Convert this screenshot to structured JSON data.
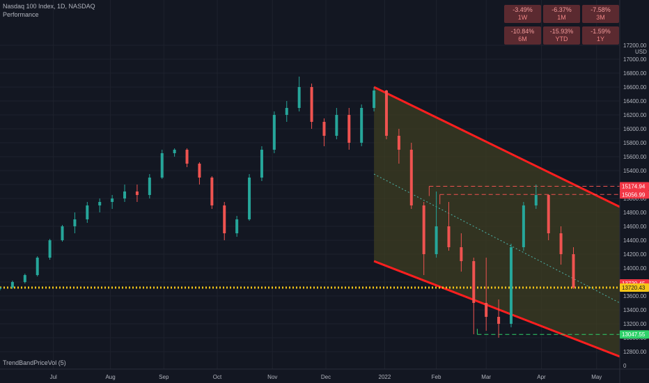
{
  "header": {
    "title": "Nasdaq 100 Index, 1D, NASDAQ",
    "subtitle": "Performance"
  },
  "performance": [
    {
      "value": "-3.49%",
      "period": "1W"
    },
    {
      "value": "-6.37%",
      "period": "1M"
    },
    {
      "value": "-7.58%",
      "period": "3M"
    },
    {
      "value": "-10.84%",
      "period": "6M"
    },
    {
      "value": "-15.93%",
      "period": "YTD"
    },
    {
      "value": "-1.59%",
      "period": "1Y"
    }
  ],
  "indicator_label": "TrendBandPriceVol (5)",
  "colors": {
    "background": "#131722",
    "up": "#26a69a",
    "down": "#ef5350",
    "channel_line": "#ff1f1f",
    "channel_fill": "#3d3d22",
    "dotted_level": "#f5c518",
    "mid_line": "#4db6ac",
    "support": "#2fd26a"
  },
  "chart_data": {
    "type": "candlestick",
    "y_unit": "USD",
    "ylim": [
      12550,
      17850
    ],
    "y_ticks": [
      12800,
      13000,
      13200,
      13400,
      13600,
      13800,
      14000,
      14200,
      14400,
      14600,
      14800,
      15000,
      15200,
      15400,
      15600,
      15800,
      16000,
      16200,
      16400,
      16600,
      16800,
      17000,
      17200
    ],
    "y_tick_labels": [
      "12800.00",
      "13000.00",
      "13200.00",
      "13400.00",
      "13600.00",
      "13800.00",
      "14000.00",
      "14200.00",
      "14400.00",
      "14600.00",
      "14800.00",
      "15000.00",
      "15200.00",
      "15400.00",
      "15600.00",
      "15800.00",
      "16000.00",
      "16200.00",
      "16400.00",
      "16600.00",
      "16800.00",
      "17000.00",
      "17200.00"
    ],
    "bottom_tick": "0",
    "x_range": [
      "2021-06-01",
      "2022-05-15"
    ],
    "x_ticks": [
      {
        "label": "Jul",
        "date": "2021-07-01"
      },
      {
        "label": "Aug",
        "date": "2021-08-02"
      },
      {
        "label": "Sep",
        "date": "2021-09-01"
      },
      {
        "label": "Oct",
        "date": "2021-10-01"
      },
      {
        "label": "Nov",
        "date": "2021-11-01"
      },
      {
        "label": "Dec",
        "date": "2021-12-01"
      },
      {
        "label": "2022",
        "date": "2022-01-03"
      },
      {
        "label": "Feb",
        "date": "2022-02-01"
      },
      {
        "label": "Mar",
        "date": "2022-03-01"
      },
      {
        "label": "Apr",
        "date": "2022-04-01"
      },
      {
        "label": "May",
        "date": "2022-05-02"
      }
    ],
    "price_markers": [
      {
        "label": "15174.94",
        "value": 15174.94,
        "color": "#f23645"
      },
      {
        "label": "15056.99",
        "value": 15056.99,
        "color": "#f23645"
      },
      {
        "label": "13720.45",
        "value": 13780,
        "color": "#f23645"
      },
      {
        "label": "13720.43",
        "value": 13720.43,
        "color": "#f5c518"
      },
      {
        "label": "13047.55",
        "value": 13047.55,
        "color": "#2fd26a"
      }
    ],
    "levels": [
      {
        "name": "dotted",
        "value": 13720.43,
        "from": "2021-06-01",
        "to": "2022-05-15"
      },
      {
        "name": "resistance-1",
        "value": 15174.94,
        "from": "2022-01-28",
        "to": "2022-05-15"
      },
      {
        "name": "resistance-2",
        "value": 15056.99,
        "from": "2022-02-03",
        "to": "2022-05-15"
      },
      {
        "name": "support",
        "value": 13047.55,
        "from": "2022-02-24",
        "to": "2022-05-15"
      }
    ],
    "channel": {
      "start": "2021-12-28",
      "end": "2022-05-15",
      "upper": [
        16600,
        14880
      ],
      "lower": [
        14100,
        12730
      ],
      "mid": [
        15350,
        13500
      ]
    },
    "candles": [
      [
        "2021-06-01",
        13700,
        13720,
        13680,
        13730
      ],
      [
        "2021-06-08",
        13720,
        13800,
        13700,
        13820
      ],
      [
        "2021-06-15",
        13800,
        13900,
        13780,
        13920
      ],
      [
        "2021-06-22",
        13900,
        14150,
        13880,
        14170
      ],
      [
        "2021-06-29",
        14150,
        14400,
        14120,
        14420
      ],
      [
        "2021-07-06",
        14400,
        14600,
        14380,
        14620
      ],
      [
        "2021-07-13",
        14600,
        14700,
        14500,
        14800
      ],
      [
        "2021-07-20",
        14700,
        14900,
        14650,
        14950
      ],
      [
        "2021-07-27",
        14900,
        14950,
        14800,
        15000
      ],
      [
        "2021-08-03",
        14950,
        15000,
        14850,
        15050
      ],
      [
        "2021-08-10",
        15000,
        15100,
        14950,
        15200
      ],
      [
        "2021-08-17",
        15100,
        15050,
        14950,
        15200
      ],
      [
        "2021-08-24",
        15050,
        15300,
        15000,
        15350
      ],
      [
        "2021-08-31",
        15300,
        15650,
        15280,
        15700
      ],
      [
        "2021-09-07",
        15650,
        15700,
        15600,
        15720
      ],
      [
        "2021-09-14",
        15700,
        15500,
        15450,
        15720
      ],
      [
        "2021-09-21",
        15500,
        15300,
        15200,
        15520
      ],
      [
        "2021-09-28",
        15300,
        14900,
        14850,
        15320
      ],
      [
        "2021-10-05",
        14900,
        14500,
        14400,
        14950
      ],
      [
        "2021-10-12",
        14500,
        14700,
        14450,
        14750
      ],
      [
        "2021-10-19",
        14700,
        15300,
        14680,
        15350
      ],
      [
        "2021-10-26",
        15300,
        15700,
        15250,
        15750
      ],
      [
        "2021-11-02",
        15700,
        16200,
        15650,
        16250
      ],
      [
        "2021-11-09",
        16200,
        16300,
        16100,
        16400
      ],
      [
        "2021-11-16",
        16300,
        16600,
        16250,
        16750
      ],
      [
        "2021-11-23",
        16600,
        16100,
        16000,
        16650
      ],
      [
        "2021-11-30",
        16100,
        15900,
        15750,
        16150
      ],
      [
        "2021-12-07",
        15900,
        16200,
        15850,
        16300
      ],
      [
        "2021-12-14",
        16200,
        15800,
        15700,
        16300
      ],
      [
        "2021-12-21",
        15800,
        16300,
        15750,
        16350
      ],
      [
        "2021-12-28",
        16300,
        16550,
        16250,
        16600
      ],
      [
        "2022-01-04",
        16550,
        15900,
        15850,
        16560
      ],
      [
        "2022-01-11",
        15900,
        15700,
        15500,
        16000
      ],
      [
        "2022-01-18",
        15700,
        14900,
        14850,
        15800
      ],
      [
        "2022-01-25",
        14900,
        14200,
        13900,
        14950
      ],
      [
        "2022-02-01",
        14200,
        14600,
        14150,
        15100
      ],
      [
        "2022-02-08",
        14600,
        14300,
        14250,
        14950
      ],
      [
        "2022-02-15",
        14300,
        14100,
        13950,
        14500
      ],
      [
        "2022-02-22",
        14100,
        13500,
        13050,
        14150
      ],
      [
        "2022-03-01",
        13500,
        13300,
        13100,
        14150
      ],
      [
        "2022-03-08",
        13300,
        13200,
        13000,
        13550
      ],
      [
        "2022-03-15",
        13200,
        14300,
        13150,
        14350
      ],
      [
        "2022-03-22",
        14300,
        14900,
        14250,
        14950
      ],
      [
        "2022-03-29",
        14900,
        15050,
        14850,
        15200
      ],
      [
        "2022-04-05",
        15050,
        14500,
        14400,
        15060
      ],
      [
        "2022-04-12",
        14500,
        14200,
        14050,
        14600
      ],
      [
        "2022-04-19",
        14200,
        13720,
        13700,
        14300
      ]
    ]
  }
}
